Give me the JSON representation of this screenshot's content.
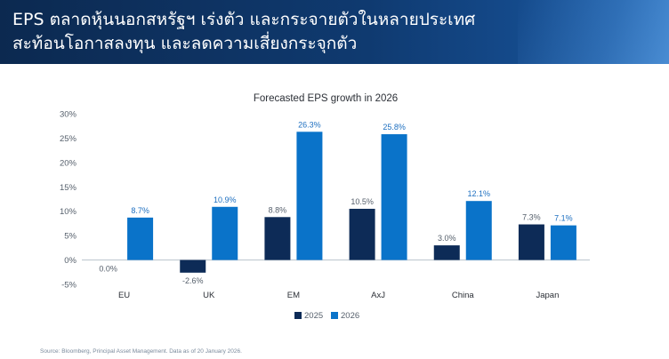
{
  "header": {
    "line1": "EPS ตลาดหุ้นนอกสหรัฐฯ เร่งตัว และกระจายตัวในหลายประเทศ",
    "line2": "สะท้อนโอกาสลงทุน และลดความเสี่ยงกระจุกตัว"
  },
  "chart_data": {
    "type": "bar",
    "title": "Forecasted EPS growth in 2026",
    "categories": [
      "EU",
      "UK",
      "EM",
      "AxJ",
      "China",
      "Japan"
    ],
    "series": [
      {
        "name": "2025",
        "color": "#0d2b57",
        "values": [
          0.0,
          -2.6,
          8.8,
          10.5,
          3.0,
          7.3
        ],
        "labels": [
          "0.0%",
          "-2.6%",
          "8.8%",
          "10.5%",
          "3.0%",
          "7.3%"
        ],
        "label_color": "#555f6b"
      },
      {
        "name": "2026",
        "color": "#0a73c9",
        "values": [
          8.7,
          10.9,
          26.3,
          25.8,
          12.1,
          7.1
        ],
        "labels": [
          "8.7%",
          "10.9%",
          "26.3%",
          "25.8%",
          "12.1%",
          "7.1%"
        ],
        "label_color": "#1d6fc0"
      }
    ],
    "ylim": [
      -5,
      30
    ],
    "yticks": [
      -5,
      0,
      5,
      10,
      15,
      20,
      25,
      30
    ],
    "ytick_labels": [
      "-5%",
      "0%",
      "5%",
      "10%",
      "15%",
      "20%",
      "25%",
      "30%"
    ],
    "xlabel": "",
    "ylabel": "",
    "legend": "bottom-center",
    "grid": false
  },
  "source": "Source: Bloomberg, Principal Asset Management. Data as of 20 January 2026."
}
